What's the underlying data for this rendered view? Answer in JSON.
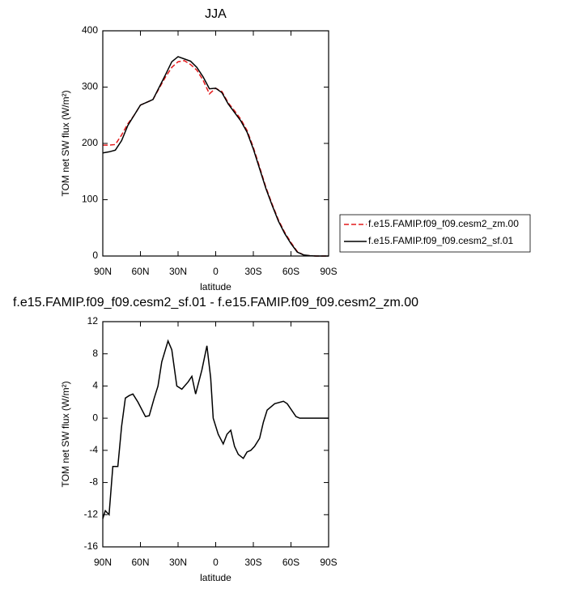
{
  "chart_data": [
    {
      "type": "line",
      "title": "JJA",
      "xlabel": "latitude",
      "ylabel": "TOM net SW flux (W/m²)",
      "x": [
        90,
        85,
        80,
        75,
        70,
        65,
        60,
        55,
        50,
        45,
        40,
        35,
        30,
        25,
        20,
        15,
        10,
        5,
        0,
        -5,
        -10,
        -15,
        -20,
        -25,
        -30,
        -35,
        -40,
        -45,
        -50,
        -55,
        -60,
        -65,
        -70,
        -75,
        -80,
        -85,
        -90
      ],
      "series": [
        {
          "name": "f.e15.FAMIP.f09_f09.cesm2_zm.00",
          "color": "#e41a1c",
          "linestyle": "dashed",
          "values": [
            197,
            197,
            198,
            215,
            235,
            250,
            268,
            273,
            278,
            298,
            318,
            335,
            345,
            347,
            340,
            330,
            312,
            288,
            298,
            292,
            272,
            258,
            243,
            223,
            193,
            158,
            122,
            92,
            64,
            42,
            24,
            8,
            2,
            0.5,
            0,
            0,
            0
          ]
        },
        {
          "name": "f.e15.FAMIP.f09_f09.cesm2_sf.01",
          "color": "#000000",
          "linestyle": "solid",
          "values": [
            183,
            185,
            188,
            205,
            232,
            250,
            268,
            273,
            278,
            300,
            322,
            345,
            354,
            350,
            346,
            335,
            318,
            297,
            298,
            290,
            270,
            255,
            240,
            220,
            190,
            155,
            120,
            90,
            62,
            40,
            22,
            7,
            2,
            0.5,
            0,
            0,
            0
          ]
        }
      ],
      "xlim": [
        90,
        -90
      ],
      "xticks": [
        {
          "value": 90,
          "label": "90N"
        },
        {
          "value": 60,
          "label": "60N"
        },
        {
          "value": 30,
          "label": "30N"
        },
        0,
        {
          "value": -30,
          "label": "30S"
        },
        {
          "value": -60,
          "label": "60S"
        },
        {
          "value": -90,
          "label": "90S"
        }
      ],
      "ylim": [
        0,
        400
      ],
      "yticks": [
        0,
        100,
        200,
        300,
        400
      ],
      "legend": "outside-right"
    },
    {
      "type": "line",
      "title": "f.e15.FAMIP.f09_f09.cesm2_sf.01 - f.e15.FAMIP.f09_f09.cesm2_zm.00",
      "xlabel": "latitude",
      "ylabel": "TOM net SW flux (W/m²)",
      "x": [
        90,
        88,
        85,
        82,
        78,
        75,
        72,
        69,
        66,
        62,
        56,
        53,
        49,
        46,
        43,
        38,
        35,
        31,
        27,
        22,
        19,
        16,
        11,
        7,
        4,
        2,
        -2,
        -6,
        -9,
        -12,
        -15,
        -18,
        -22,
        -25,
        -28,
        -31,
        -35,
        -38,
        -41,
        -47,
        -54,
        -57,
        -64,
        -67,
        -90
      ],
      "series": [
        {
          "color": "#000000",
          "linestyle": "solid",
          "values": [
            -12.5,
            -11.5,
            -12,
            -6,
            -6,
            -1,
            2.5,
            2.8,
            3,
            2,
            0.2,
            0.3,
            2.5,
            4,
            7,
            9.6,
            8.5,
            4,
            3.6,
            4.5,
            5.2,
            3,
            6,
            9,
            5,
            0,
            -2,
            -3.2,
            -2,
            -1.5,
            -3.5,
            -4.5,
            -5,
            -4.2,
            -4,
            -3.5,
            -2.5,
            -0.5,
            1,
            1.8,
            2.1,
            1.8,
            0.2,
            0,
            0
          ]
        }
      ],
      "xlim": [
        90,
        -90
      ],
      "xticks": [
        {
          "value": 90,
          "label": "90N"
        },
        {
          "value": 60,
          "label": "60N"
        },
        {
          "value": 30,
          "label": "30N"
        },
        0,
        {
          "value": -30,
          "label": "30S"
        },
        {
          "value": -60,
          "label": "60S"
        },
        {
          "value": -90,
          "label": "90S"
        }
      ],
      "ylim": [
        -16,
        12
      ],
      "yticks": [
        -16,
        -12,
        -8,
        -4,
        0,
        4,
        8,
        12
      ]
    }
  ]
}
